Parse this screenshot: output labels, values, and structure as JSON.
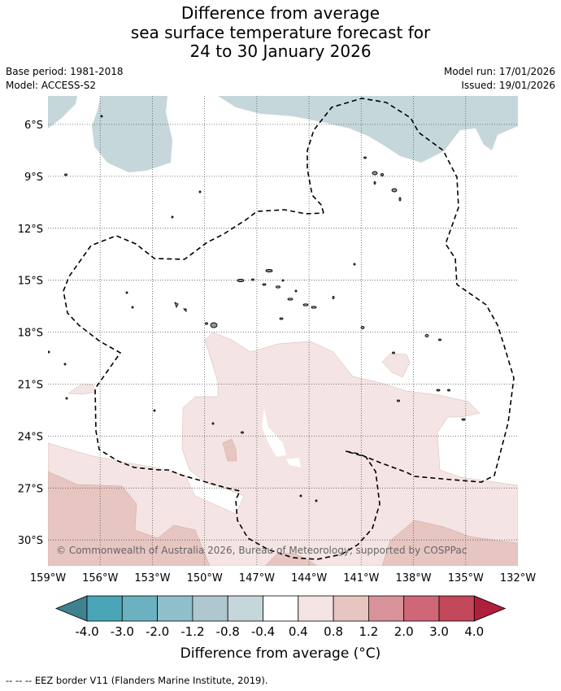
{
  "title": {
    "line1": "Difference from average",
    "line2": "sea surface temperature forecast for",
    "line3": "24 to 30 January 2026"
  },
  "meta": {
    "base_period": "Base period: 1981-2018",
    "model": "Model: ACCESS-S2",
    "model_run": "Model run: 17/01/2026",
    "issued": "Issued: 19/01/2026"
  },
  "map": {
    "lat_labels": [
      "6°S",
      "9°S",
      "12°S",
      "15°S",
      "18°S",
      "21°S",
      "24°S",
      "27°S",
      "30°S"
    ],
    "lon_labels": [
      "159°W",
      "156°W",
      "153°W",
      "150°W",
      "147°W",
      "144°W",
      "141°W",
      "138°W",
      "135°W",
      "132°W"
    ],
    "copyright": "© Commonwealth of Australia 2026, Bureau of Meteorology, supported by COSPPac",
    "colors": {
      "cool_light": "#c6d7db",
      "warm_light": "#f4e4e3",
      "warm_medium": "#e7c5c1",
      "warm_strong": "#d8a9a6",
      "grid": "#555555"
    }
  },
  "colorbar": {
    "ticks": [
      "-4.0",
      "-3.0",
      "-2.0",
      "-1.2",
      "-0.8",
      "-0.4",
      "0.4",
      "0.8",
      "1.2",
      "2.0",
      "3.0",
      "4.0"
    ],
    "colors": [
      "#4aa5b6",
      "#6cb1c1",
      "#8fbfca",
      "#afc7cf",
      "#c6d7db",
      "#ffffff",
      "#f4e4e3",
      "#e7c5c1",
      "#d8939a",
      "#cf6778",
      "#c2485a"
    ],
    "low_extend_color": "#3e8290",
    "high_extend_color": "#b01f3b",
    "label": "Difference from average (°C)"
  },
  "footer": "-- -- -- EEZ border V11 (Flanders Marine Institute, 2019)."
}
